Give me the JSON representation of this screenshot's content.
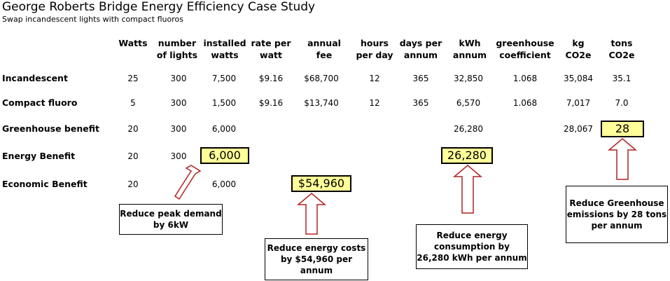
{
  "title": "George Roberts Bridge Energy Efficiency Case Study",
  "subtitle": "Swap incandescent lights with compact fluoros",
  "headers": [
    [
      "Watts",
      ""
    ],
    [
      "number",
      "of lights"
    ],
    [
      "installed",
      "watts"
    ],
    [
      "rate per",
      "watt"
    ],
    [
      "annual",
      "fee"
    ],
    [
      "hours",
      "per day"
    ],
    [
      "days per",
      "annum"
    ],
    [
      "kWh",
      "annum"
    ],
    [
      "greenhouse",
      "coefficient"
    ],
    [
      "kg",
      "CO2e"
    ],
    [
      "tons",
      "CO2e"
    ]
  ],
  "rows": [
    {
      "label": "Incandescent",
      "cells": [
        "25",
        "300",
        "7,500",
        "$9.16",
        "$68,700",
        "12",
        "365",
        "32,850",
        "1.068",
        "35,084",
        "35.1"
      ]
    },
    {
      "label": "Compact fluoro",
      "cells": [
        "5",
        "300",
        "1,500",
        "$9.16",
        "$13,740",
        "12",
        "365",
        "6,570",
        "1.068",
        "7,017",
        "7.0"
      ]
    },
    {
      "label": "Greenhouse benefit",
      "cells": [
        "20",
        "300",
        "6,000",
        "",
        "",
        "",
        "",
        "26,280",
        "",
        "28,067",
        ""
      ]
    },
    {
      "label": "Energy Benefit",
      "cells": [
        "20",
        "300",
        "",
        "",
        "",
        "",
        "",
        "",
        "",
        "",
        ""
      ]
    },
    {
      "label": "Economic  Benefit",
      "cells": [
        "20",
        "",
        "6,000",
        "",
        "",
        "",
        "",
        "",
        "",
        "",
        ""
      ]
    }
  ],
  "highlights": {
    "tons": "28",
    "energy_watts": "6,000",
    "energy_kwh": "26,280",
    "economic_fee": "$54,960"
  },
  "callouts": {
    "peak": "Reduce peak demand by 6kW",
    "costs": "Reduce energy costs by $54,960 per annum",
    "consumption": "Reduce energy consumption by 26,280 kWh per annum",
    "greenhouse": "Reduce Greenhouse emissions by 28 tons per annum"
  },
  "colors": {
    "highlight_fill": "#ffff99",
    "arrow_stroke": "#b22222"
  }
}
